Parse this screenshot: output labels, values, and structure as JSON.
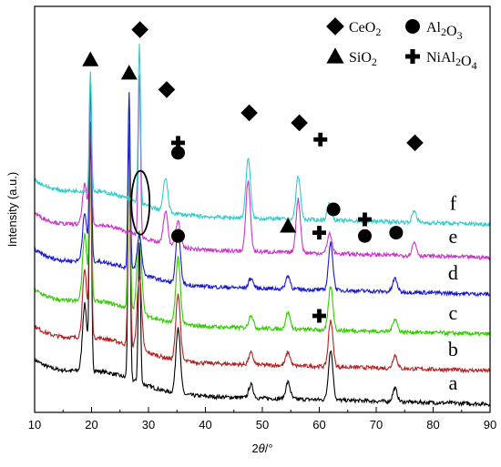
{
  "chart_data": {
    "type": "line",
    "xlabel": "2θ/°",
    "ylabel": "Intensity (a.u.)",
    "xlim": [
      10,
      90
    ],
    "xticks": [
      "10",
      "20",
      "30",
      "40",
      "50",
      "60",
      "70",
      "80",
      "90"
    ],
    "yticks": false,
    "grid": false,
    "legend": {
      "placement": "top-right",
      "items": [
        {
          "marker": "diamond",
          "label": "CeO2"
        },
        {
          "marker": "circle",
          "label": "Al2O3"
        },
        {
          "marker": "triangle",
          "label": "SiO2"
        },
        {
          "marker": "plus",
          "label": "NiAl2O4"
        }
      ]
    },
    "series": [
      {
        "name": "a",
        "color": "#000000",
        "baseline": 0.6,
        "peaks": [
          [
            18.8,
            2.0
          ],
          [
            19.8,
            7.0
          ],
          [
            26.6,
            7.4
          ],
          [
            28.4,
            4.2
          ],
          [
            35.2,
            2.0
          ],
          [
            48.0,
            0.4
          ],
          [
            54.5,
            0.5
          ],
          [
            62.0,
            1.5
          ],
          [
            73.3,
            0.4
          ]
        ]
      },
      {
        "name": "b",
        "color": "#b22222",
        "baseline": 1.6,
        "peaks": [
          [
            18.8,
            2.0
          ],
          [
            19.8,
            6.4
          ],
          [
            26.6,
            6.7
          ],
          [
            28.4,
            2.2
          ],
          [
            35.2,
            2.0
          ],
          [
            48.0,
            0.35
          ],
          [
            54.5,
            0.4
          ],
          [
            62.0,
            1.4
          ],
          [
            73.3,
            0.4
          ]
        ]
      },
      {
        "name": "c",
        "color": "#33cc00",
        "baseline": 2.7,
        "peaks": [
          [
            18.8,
            2.0
          ],
          [
            19.8,
            6.3
          ],
          [
            26.6,
            6.3
          ],
          [
            28.4,
            2.5
          ],
          [
            35.2,
            2.0
          ],
          [
            48.0,
            0.4
          ],
          [
            54.5,
            0.5
          ],
          [
            62.0,
            1.3
          ],
          [
            73.3,
            0.4
          ]
        ]
      },
      {
        "name": "d",
        "color": "#1a1acc",
        "baseline": 3.9,
        "peaks": [
          [
            18.8,
            1.4
          ],
          [
            19.8,
            5.2
          ],
          [
            26.6,
            5.3
          ],
          [
            28.4,
            1.1
          ],
          [
            35.2,
            1.6
          ],
          [
            48.0,
            0.3
          ],
          [
            54.5,
            0.4
          ],
          [
            62.0,
            1.4
          ],
          [
            73.3,
            0.4
          ]
        ]
      },
      {
        "name": "e",
        "color": "#cc33cc",
        "baseline": 5.0,
        "peaks": [
          [
            18.8,
            1.2
          ],
          [
            19.8,
            4.4
          ],
          [
            28.4,
            4.9
          ],
          [
            33.0,
            1.0
          ],
          [
            35.2,
            0.8
          ],
          [
            47.5,
            2.1
          ],
          [
            56.3,
            1.6
          ],
          [
            61.8,
            0.6
          ],
          [
            76.7,
            0.4
          ]
        ]
      },
      {
        "name": "f",
        "color": "#33cccc",
        "baseline": 6.0,
        "peaks": [
          [
            19.8,
            3.6
          ],
          [
            28.4,
            4.8
          ],
          [
            33.0,
            1.0
          ],
          [
            47.5,
            1.8
          ],
          [
            56.3,
            1.3
          ],
          [
            61.8,
            0.5
          ],
          [
            76.7,
            0.35
          ]
        ]
      }
    ],
    "annotations": [
      {
        "marker": "diamond",
        "x": 28.5,
        "y": 11.5
      },
      {
        "marker": "triangle",
        "x": 19.8,
        "y": 10.6
      },
      {
        "marker": "triangle",
        "x": 26.6,
        "y": 10.2
      },
      {
        "marker": "diamond",
        "x": 33.2,
        "y": 9.7
      },
      {
        "marker": "diamond",
        "x": 47.7,
        "y": 9.0
      },
      {
        "marker": "diamond",
        "x": 56.5,
        "y": 8.7
      },
      {
        "marker": "plus",
        "x": 60.2,
        "y": 8.2
      },
      {
        "marker": "diamond",
        "x": 76.8,
        "y": 8.1
      },
      {
        "marker": "plus",
        "x": 35.2,
        "y": 8.1
      },
      {
        "marker": "circle",
        "x": 35.2,
        "y": 7.8
      },
      {
        "marker": "circle",
        "x": 62.5,
        "y": 6.1
      },
      {
        "marker": "triangle",
        "x": 54.5,
        "y": 5.6
      },
      {
        "marker": "plus",
        "x": 60.0,
        "y": 5.4
      },
      {
        "marker": "plus",
        "x": 68.0,
        "y": 5.8
      },
      {
        "marker": "circle",
        "x": 68.0,
        "y": 5.3
      },
      {
        "marker": "circle",
        "x": 73.5,
        "y": 5.4
      },
      {
        "marker": "circle",
        "x": 35.2,
        "y": 5.3
      },
      {
        "marker": "plus",
        "x": 60.0,
        "y": 2.9
      },
      {
        "marker": "ellipse",
        "x": 28.6,
        "y": 6.3
      }
    ],
    "ylim": [
      0,
      12.2
    ]
  }
}
